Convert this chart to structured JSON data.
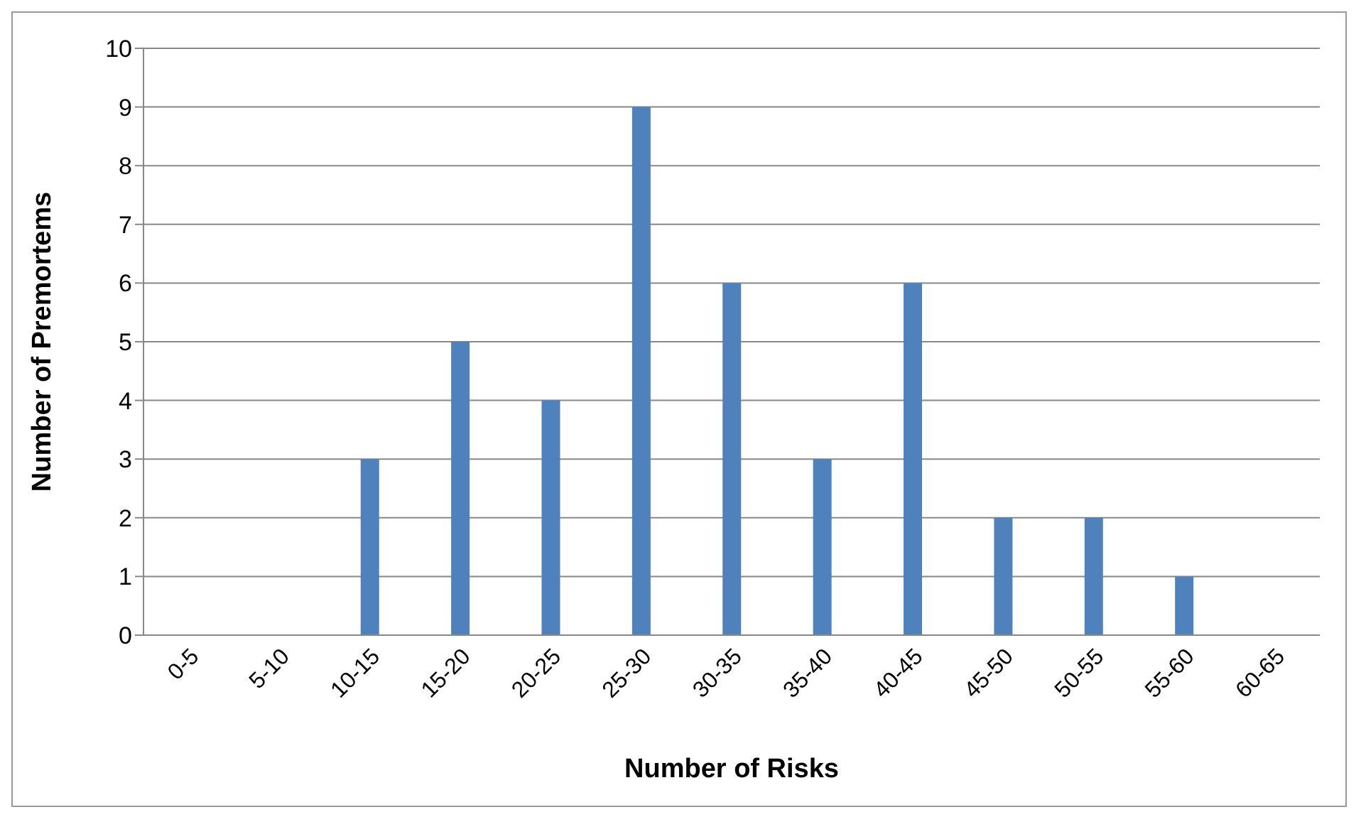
{
  "chart_data": {
    "type": "bar",
    "xlabel": "Number of Risks",
    "ylabel": "Number of Premortems",
    "categories": [
      "0-5",
      "5-10",
      "10-15",
      "15-20",
      "20-25",
      "25-30",
      "30-35",
      "35-40",
      "40-45",
      "45-50",
      "50-55",
      "55-60",
      "60-65"
    ],
    "values": [
      0,
      0,
      3,
      5,
      4,
      9,
      6,
      3,
      6,
      2,
      2,
      1,
      0
    ],
    "color": "#4f81bd",
    "ylim": [
      0,
      10
    ],
    "yticks": [
      0,
      1,
      2,
      3,
      4,
      5,
      6,
      7,
      8,
      9,
      10
    ],
    "grid": "y"
  }
}
